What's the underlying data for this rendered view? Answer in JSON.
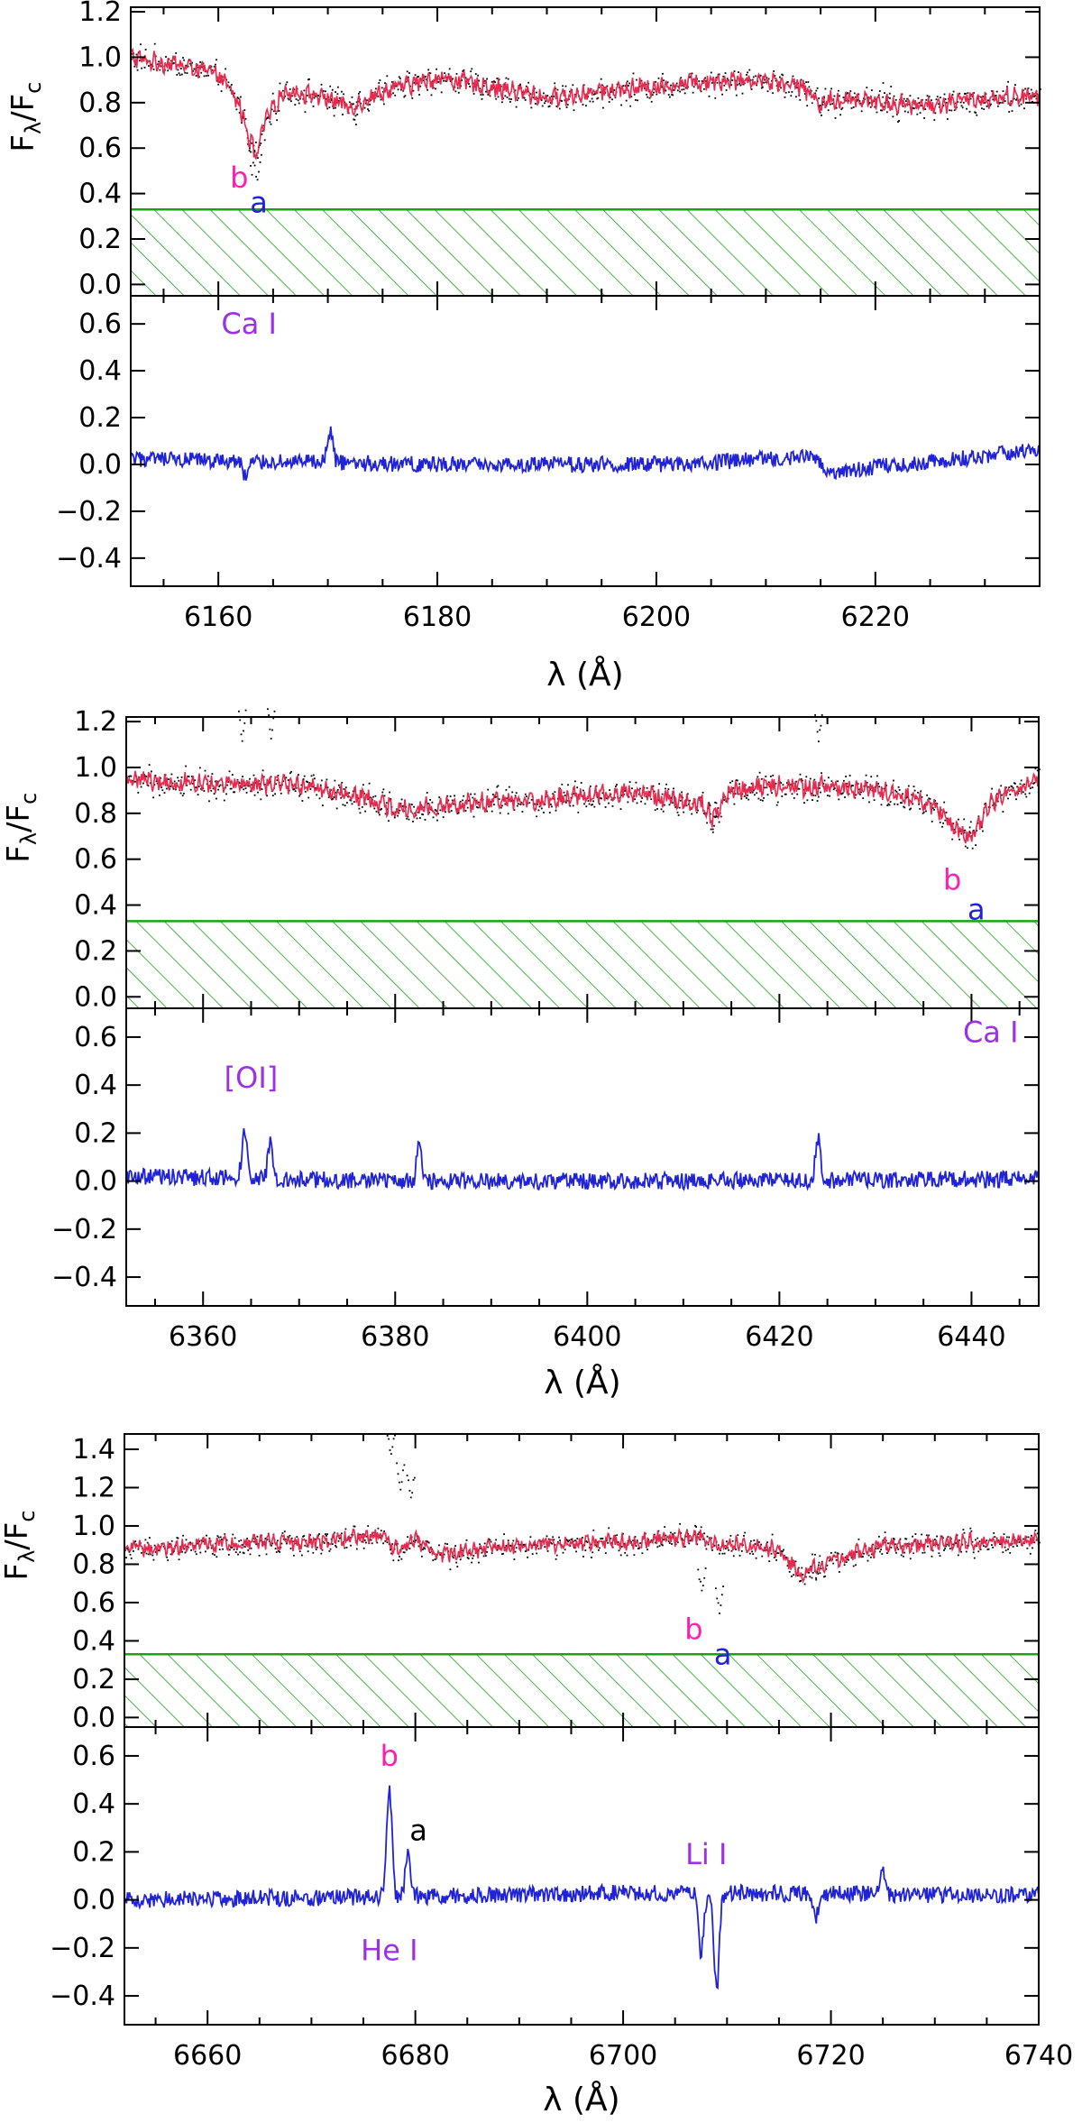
{
  "chart_data": [
    {
      "type": "line",
      "panel": "top",
      "ylabel": "Fλ/Fc",
      "ylabel_parts": {
        "main": "F",
        "sub1": "λ",
        "slash": "/F",
        "sub2": "c"
      },
      "xlabel": "λ (Å)",
      "xlim": [
        6152,
        6235
      ],
      "xticks": [
        6160,
        6180,
        6200,
        6220
      ],
      "upper": {
        "ylim": [
          -0.05,
          1.22
        ],
        "yticks": [
          0.0,
          0.2,
          0.4,
          0.6,
          0.8,
          1.0,
          1.2
        ],
        "hatch_band": [
          -0.05,
          0.33
        ],
        "continuum": [
          [
            6152,
            1.0
          ],
          [
            6154,
            0.98
          ],
          [
            6156,
            0.97
          ],
          [
            6158,
            0.95
          ],
          [
            6160,
            0.92
          ],
          [
            6161,
            0.86
          ],
          [
            6162,
            0.78
          ],
          [
            6163,
            0.62
          ],
          [
            6163.5,
            0.55
          ],
          [
            6164,
            0.68
          ],
          [
            6165,
            0.78
          ],
          [
            6166,
            0.85
          ],
          [
            6168,
            0.84
          ],
          [
            6170,
            0.82
          ],
          [
            6172,
            0.78
          ],
          [
            6175,
            0.85
          ],
          [
            6180,
            0.91
          ],
          [
            6185,
            0.87
          ],
          [
            6190,
            0.82
          ],
          [
            6195,
            0.85
          ],
          [
            6200,
            0.87
          ],
          [
            6205,
            0.9
          ],
          [
            6210,
            0.9
          ],
          [
            6213,
            0.88
          ],
          [
            6215,
            0.8
          ],
          [
            6218,
            0.82
          ],
          [
            6220,
            0.8
          ],
          [
            6225,
            0.79
          ],
          [
            6230,
            0.82
          ],
          [
            6235,
            0.83
          ]
        ],
        "observed_extras": [
          [
            6163,
            0.5
          ],
          [
            6163.5,
            0.45
          ],
          [
            6170.5,
            0.75
          ],
          [
            6172.5,
            0.72
          ],
          [
            6215,
            0.75
          ],
          [
            6221,
            0.76
          ]
        ],
        "markers": [
          {
            "text": "b",
            "x": 6161.9,
            "y": 0.47,
            "color": "#ff1fae"
          },
          {
            "text": "a",
            "x": 6163.7,
            "y": 0.36,
            "color": "#1f22d6"
          }
        ]
      },
      "lower": {
        "ylim": [
          -0.52,
          0.72
        ],
        "yticks": [
          -0.4,
          -0.2,
          0.0,
          0.2,
          0.4,
          0.6
        ],
        "residual_trend": [
          [
            6152,
            0.02
          ],
          [
            6180,
            0.0
          ],
          [
            6200,
            0.0
          ],
          [
            6214,
            0.03
          ],
          [
            6216,
            -0.03
          ],
          [
            6235,
            0.06
          ]
        ],
        "spikes": [
          [
            6170.2,
            0.14
          ],
          [
            6162.5,
            -0.05
          ],
          [
            6234,
            0.08
          ]
        ],
        "annotations": [
          {
            "text": "Ca I",
            "x": 6162.8,
            "y": 0.6,
            "color": "#9b30e6"
          }
        ]
      }
    },
    {
      "type": "line",
      "panel": "middle",
      "ylabel": "Fλ/Fc",
      "ylabel_parts": {
        "main": "F",
        "sub1": "λ",
        "slash": "/F",
        "sub2": "c"
      },
      "xlabel": "λ (Å)",
      "xlim": [
        6352,
        6447
      ],
      "xticks": [
        6360,
        6380,
        6400,
        6420,
        6440
      ],
      "upper": {
        "ylim": [
          -0.05,
          1.22
        ],
        "yticks": [
          0.0,
          0.2,
          0.4,
          0.6,
          0.8,
          1.0,
          1.2
        ],
        "hatch_band": [
          -0.05,
          0.33
        ],
        "continuum": [
          [
            6352,
            0.95
          ],
          [
            6360,
            0.93
          ],
          [
            6370,
            0.92
          ],
          [
            6375,
            0.89
          ],
          [
            6380,
            0.82
          ],
          [
            6385,
            0.83
          ],
          [
            6390,
            0.85
          ],
          [
            6395,
            0.86
          ],
          [
            6400,
            0.88
          ],
          [
            6405,
            0.89
          ],
          [
            6412,
            0.84
          ],
          [
            6413,
            0.78
          ],
          [
            6415,
            0.9
          ],
          [
            6420,
            0.92
          ],
          [
            6430,
            0.91
          ],
          [
            6436,
            0.84
          ],
          [
            6438.5,
            0.72
          ],
          [
            6440,
            0.7
          ],
          [
            6442,
            0.85
          ],
          [
            6447,
            0.95
          ]
        ],
        "observed_extras": [
          [
            6364,
            1.12
          ],
          [
            6367,
            1.14
          ],
          [
            6413,
            0.72
          ],
          [
            6424,
            1.12
          ],
          [
            6439.5,
            0.66
          ]
        ],
        "markers": [
          {
            "text": "b",
            "x": 6438.0,
            "y": 0.51,
            "color": "#ff1fae"
          },
          {
            "text": "a",
            "x": 6440.5,
            "y": 0.38,
            "color": "#1f22d6"
          }
        ]
      },
      "lower": {
        "ylim": [
          -0.52,
          0.72
        ],
        "yticks": [
          -0.4,
          -0.2,
          0.0,
          0.2,
          0.4,
          0.6
        ],
        "residual_trend": [
          [
            6352,
            0.02
          ],
          [
            6380,
            0.0
          ],
          [
            6410,
            0.0
          ],
          [
            6447,
            0.01
          ]
        ],
        "spikes": [
          [
            6364.3,
            0.23
          ],
          [
            6367,
            0.17
          ],
          [
            6382.5,
            0.15
          ],
          [
            6424,
            0.18
          ]
        ],
        "annotations": [
          {
            "text": "[OI]",
            "x": 6365,
            "y": 0.43,
            "color": "#9b30e6"
          },
          {
            "text": "Ca I",
            "x": 6442,
            "y": 0.62,
            "color": "#9b30e6"
          }
        ]
      }
    },
    {
      "type": "line",
      "panel": "bottom",
      "ylabel": "Fλ/Fc",
      "ylabel_parts": {
        "main": "F",
        "sub1": "λ",
        "slash": "/F",
        "sub2": "c"
      },
      "xlabel": "λ (Å)",
      "xlim": [
        6652,
        6740
      ],
      "xticks": [
        6660,
        6680,
        6700,
        6720,
        6740
      ],
      "upper": {
        "ylim": [
          -0.05,
          1.48
        ],
        "yticks": [
          0.0,
          0.2,
          0.4,
          0.6,
          0.8,
          1.0,
          1.2,
          1.4
        ],
        "hatch_band": [
          -0.05,
          0.33
        ],
        "continuum": [
          [
            6652,
            0.88
          ],
          [
            6660,
            0.9
          ],
          [
            6670,
            0.92
          ],
          [
            6677,
            0.95
          ],
          [
            6678,
            0.88
          ],
          [
            6680,
            0.93
          ],
          [
            6682,
            0.85
          ],
          [
            6690,
            0.9
          ],
          [
            6700,
            0.92
          ],
          [
            6707,
            0.94
          ],
          [
            6710,
            0.9
          ],
          [
            6715,
            0.88
          ],
          [
            6717,
            0.75
          ],
          [
            6719,
            0.8
          ],
          [
            6725,
            0.9
          ],
          [
            6740,
            0.93
          ]
        ],
        "observed_extras": [
          [
            6677.6,
            1.37
          ],
          [
            6678.5,
            1.2
          ],
          [
            6679.5,
            1.15
          ],
          [
            6707.5,
            0.66
          ],
          [
            6709.2,
            0.56
          ],
          [
            6718.5,
            0.73
          ]
        ],
        "markers": [
          {
            "text": "b",
            "x": 6706.8,
            "y": 0.46,
            "color": "#ff1fae"
          },
          {
            "text": "a",
            "x": 6709.6,
            "y": 0.33,
            "color": "#1f22d6"
          }
        ]
      },
      "lower": {
        "ylim": [
          -0.52,
          0.72
        ],
        "yticks": [
          -0.4,
          -0.2,
          0.0,
          0.2,
          0.4,
          0.6
        ],
        "residual_trend": [
          [
            6652,
            0.0
          ],
          [
            6690,
            0.02
          ],
          [
            6700,
            0.03
          ],
          [
            6740,
            0.02
          ]
        ],
        "spikes": [
          [
            6677.5,
            0.47
          ],
          [
            6679.3,
            0.2
          ],
          [
            6707.5,
            -0.22
          ],
          [
            6709,
            -0.37
          ],
          [
            6718.5,
            -0.08
          ],
          [
            6725,
            0.12
          ]
        ],
        "annotations": [
          {
            "text": "b",
            "x": 6677.5,
            "y": 0.6,
            "color": "#ff1fae"
          },
          {
            "text": "a",
            "x": 6680.3,
            "y": 0.29,
            "color": "#000000"
          },
          {
            "text": "Li I",
            "x": 6708,
            "y": 0.19,
            "color": "#9b30e6"
          },
          {
            "text": "He I",
            "x": 6677.5,
            "y": -0.21,
            "color": "#9b30e6"
          }
        ]
      }
    }
  ],
  "colors": {
    "model": "#e8294e",
    "observed": "#000000",
    "residual": "#1f22d6",
    "hatch": "#19a319"
  }
}
